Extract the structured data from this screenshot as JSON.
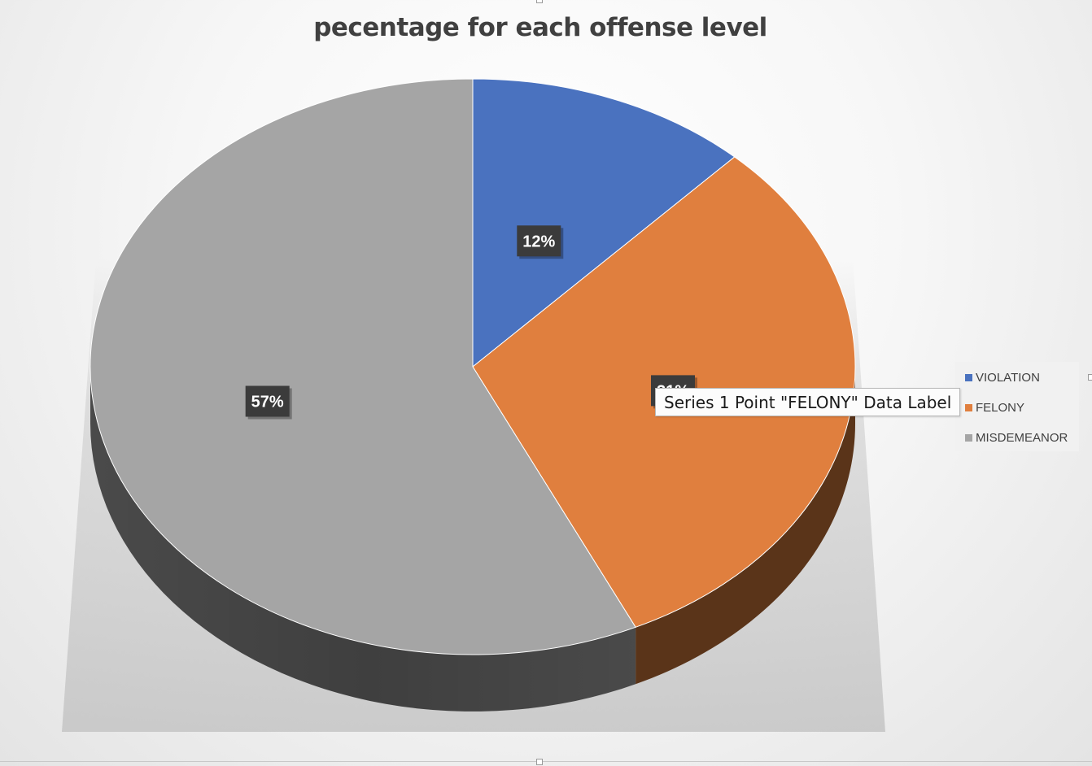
{
  "chart_data": {
    "type": "pie",
    "title": "pecentage for each offense level",
    "categories": [
      "VIOLATION",
      "FELONY",
      "MISDEMEANOR"
    ],
    "values": [
      12,
      31,
      57
    ],
    "data_labels": [
      "12%",
      "31%",
      "57%"
    ],
    "colors": [
      "#4a72bf",
      "#e07f3e",
      "#a5a5a5"
    ],
    "side_colors": [
      "#2e4a80",
      "#5a3419",
      "#4a4a4a"
    ],
    "legend_placement": "right",
    "style": "3d"
  },
  "tooltip": "Series 1 Point \"FELONY\" Data Label"
}
